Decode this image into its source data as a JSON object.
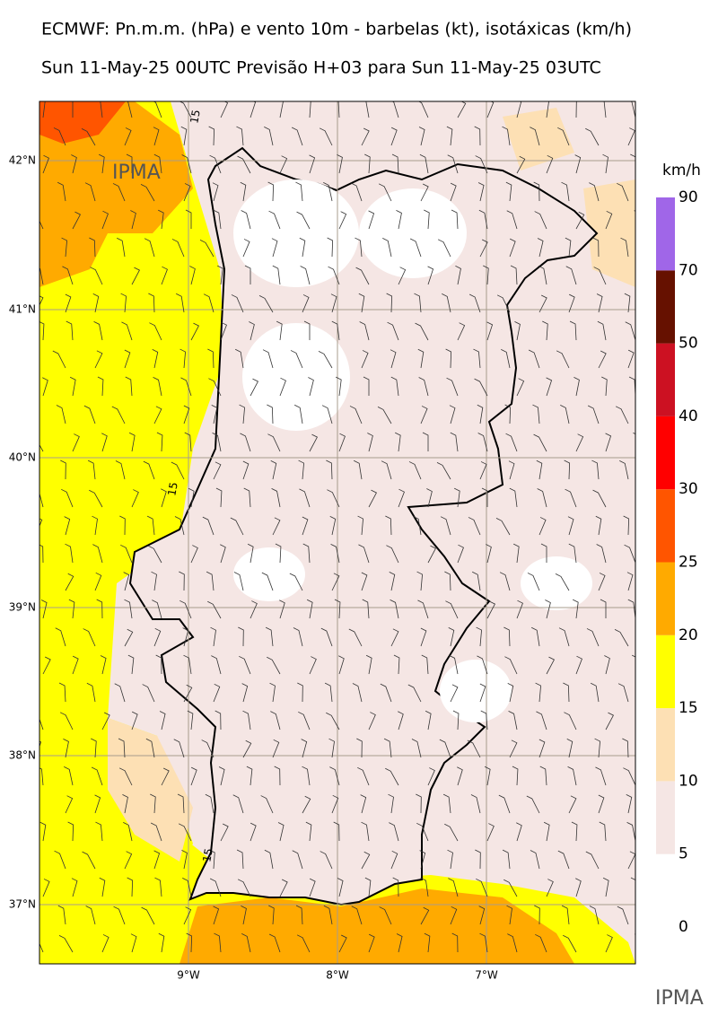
{
  "header": {
    "title": "ECMWF: Pn.m.m. (hPa) e vento 10m - barbelas (kt), isotáxicas (km/h)",
    "subtitle": "Sun 11-May-25 00UTC Previsão H+03 para Sun 11-May-25 03UTC"
  },
  "map": {
    "lat_labels": [
      "42°N",
      "41°N",
      "40°N",
      "39°N",
      "38°N",
      "37°N"
    ],
    "lon_labels": [
      "9°W",
      "8°W",
      "7°W"
    ],
    "contour_labels": [
      "15",
      "15",
      "15"
    ],
    "logo": "IPMA"
  },
  "colorbar": {
    "unit": "km/h",
    "levels": [
      0,
      5,
      10,
      15,
      20,
      25,
      30,
      40,
      50,
      70,
      90
    ],
    "colors": [
      "#ffffff",
      "#f5e6e4",
      "#fde0b4",
      "#ffff00",
      "#ffaa00",
      "#ff5500",
      "#ff0000",
      "#cc1122",
      "#661100",
      "#a066e8"
    ]
  },
  "footer": {
    "logo": "IPMA"
  }
}
